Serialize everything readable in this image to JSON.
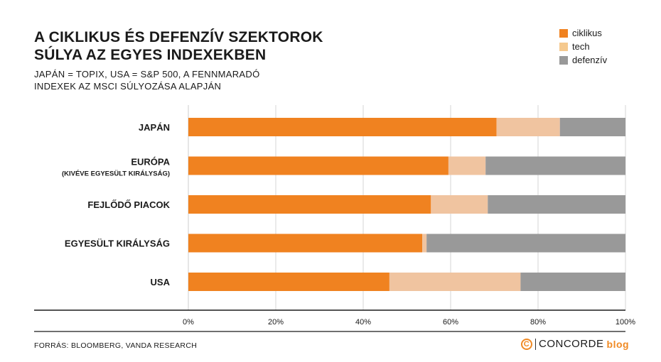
{
  "title": "A CIKLIKUS ÉS DEFENZÍV SZEKTOROK\nSÚLYA AZ EGYES INDEXEKBEN",
  "subtitle": "JAPÁN = TOPIX, USA = S&P 500, A FENNMARADÓ\nINDEXEK AZ MSCI SÚLYOZÁSA ALAPJÁN",
  "legend": [
    {
      "label": "ciklikus",
      "color": "#f08220"
    },
    {
      "label": "tech",
      "color": "#f5c98e"
    },
    {
      "label": "defenzív",
      "color": "#999999"
    }
  ],
  "chart_data": {
    "type": "bar",
    "orientation": "horizontal",
    "stacked": true,
    "categories": [
      {
        "label": "JAPÁN",
        "sublabel": ""
      },
      {
        "label": "EURÓPA",
        "sublabel": "(KIVÉVE EGYESÜLT KIRÁLYSÁG)"
      },
      {
        "label": "FEJLŐDŐ PIACOK",
        "sublabel": ""
      },
      {
        "label": "EGYESÜLT KIRÁLYSÁG",
        "sublabel": ""
      },
      {
        "label": "USA",
        "sublabel": ""
      }
    ],
    "series": [
      {
        "name": "ciklikus",
        "color": "#f08220",
        "values": [
          70.5,
          59.5,
          55.5,
          53.5,
          46
        ]
      },
      {
        "name": "tech",
        "color": "#f0c4a0",
        "values": [
          14.5,
          8.5,
          13,
          1,
          30
        ]
      },
      {
        "name": "defenzív",
        "color": "#999999",
        "values": [
          15,
          32,
          31.5,
          45.5,
          24
        ]
      }
    ],
    "xlim": [
      0,
      100
    ],
    "xticks": [
      "0%",
      "20%",
      "40%",
      "60%",
      "80%",
      "100%"
    ],
    "grid": true
  },
  "source": "FORRÁS: BLOOMBERG, VANDA RESEARCH",
  "brand": {
    "logo_letter": "C",
    "name": "CONCORDE",
    "suffix": "blog"
  }
}
